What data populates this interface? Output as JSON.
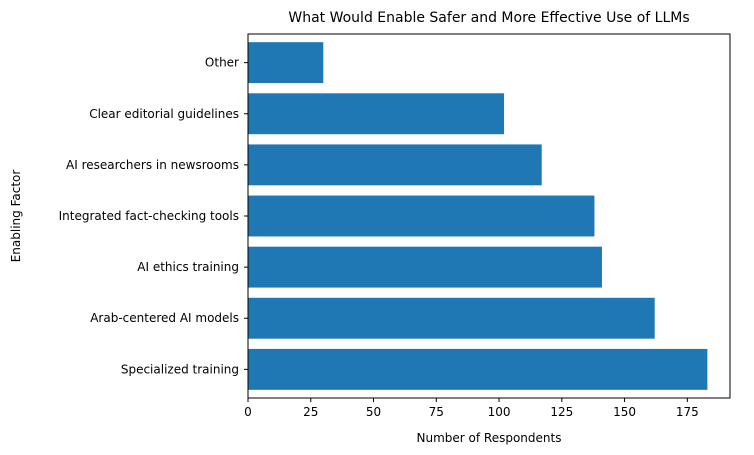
{
  "chart_data": {
    "type": "bar",
    "orientation": "horizontal",
    "title": "What Would Enable Safer and More Effective Use of LLMs",
    "xlabel": "Number of Respondents",
    "ylabel": "Enabling Factor",
    "categories": [
      "Specialized training",
      "Arab-centered AI models",
      "AI ethics training",
      "Integrated fact-checking tools",
      "AI researchers in newsrooms",
      "Clear editorial guidelines",
      "Other"
    ],
    "values": [
      183,
      162,
      141,
      138,
      117,
      102,
      30
    ],
    "xlim": [
      0,
      192
    ],
    "xticks": [
      0,
      25,
      50,
      75,
      100,
      125,
      150,
      175
    ],
    "bar_color": "#1f77b4",
    "grid": false,
    "legend": "none"
  }
}
